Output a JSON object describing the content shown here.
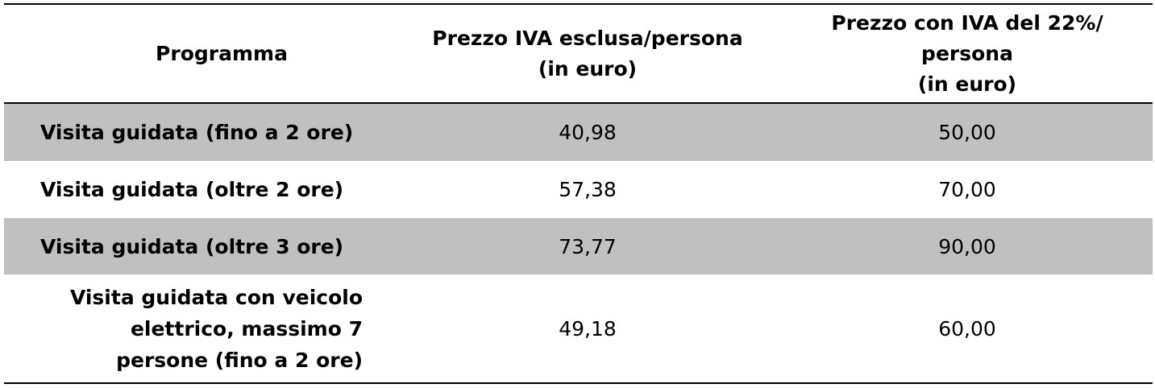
{
  "header": {
    "col1": "Programma",
    "col2": "Prezzo IVA esclusa/persona\n(in euro)",
    "col3": "Prezzo con IVA del 22%/\npersona\n(in euro)"
  },
  "rows": [
    {
      "program": "Visita guidata (fino a 2 ore)",
      "price_ex_vat": "40,98",
      "price_inc_vat": "50,00"
    },
    {
      "program": "Visita guidata (oltre 2 ore)",
      "price_ex_vat": "57,38",
      "price_inc_vat": "70,00"
    },
    {
      "program": "Visita guidata (oltre 3 ore)",
      "price_ex_vat": "73,77",
      "price_inc_vat": "90,00"
    },
    {
      "program": "Visita guidata con veicolo\nelettrico, massimo 7\npersone (fino a 2 ore)",
      "price_ex_vat": "49,18",
      "price_inc_vat": "60,00"
    }
  ],
  "colors": {
    "shaded_row": "#c0c0c0",
    "rule": "#000000"
  }
}
